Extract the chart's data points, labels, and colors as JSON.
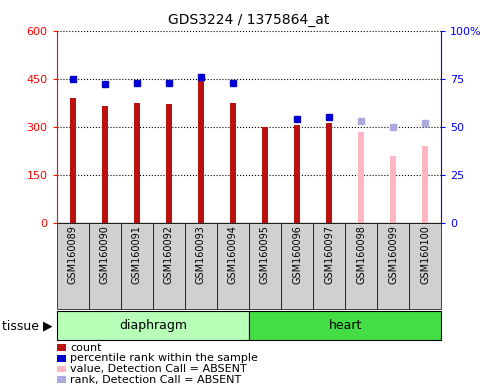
{
  "title": "GDS3224 / 1375864_at",
  "samples": [
    "GSM160089",
    "GSM160090",
    "GSM160091",
    "GSM160092",
    "GSM160093",
    "GSM160094",
    "GSM160095",
    "GSM160096",
    "GSM160097",
    "GSM160098",
    "GSM160099",
    "GSM160100"
  ],
  "count_present": [
    390,
    365,
    375,
    372,
    453,
    375,
    298,
    304,
    312,
    null,
    null,
    null
  ],
  "count_absent": [
    null,
    null,
    null,
    null,
    null,
    null,
    null,
    null,
    null,
    285,
    210,
    240
  ],
  "rank_present": [
    75,
    72,
    73,
    73,
    76,
    73,
    null,
    54,
    55,
    null,
    null,
    null
  ],
  "rank_absent": [
    null,
    null,
    null,
    null,
    null,
    null,
    null,
    null,
    null,
    53,
    50,
    52
  ],
  "groups": [
    {
      "label": "diaphragm",
      "start": 0,
      "end": 5,
      "color_light": "#ccffcc",
      "color_dark": "#44ee44"
    },
    {
      "label": "heart",
      "start": 6,
      "end": 11,
      "color_light": "#44ee44",
      "color_dark": "#22cc22"
    }
  ],
  "ylim_left": [
    0,
    600
  ],
  "ylim_right": [
    0,
    100
  ],
  "yticks_left": [
    0,
    150,
    300,
    450,
    600
  ],
  "yticks_right": [
    0,
    25,
    50,
    75,
    100
  ],
  "ytick_right_labels": [
    "0",
    "25",
    "50",
    "75",
    "100%"
  ],
  "bar_width": 0.18,
  "color_present_bar": "#bb1111",
  "color_absent_bar": "#ffb6c1",
  "color_present_rank": "#0000cc",
  "color_absent_rank": "#aaaadd",
  "plot_bg": "#ffffff",
  "xlabel_bg": "#d0d0d0",
  "grid_color": "#000000",
  "tissue_diaphragm_color": "#b8ffb8",
  "tissue_heart_color": "#44dd44"
}
